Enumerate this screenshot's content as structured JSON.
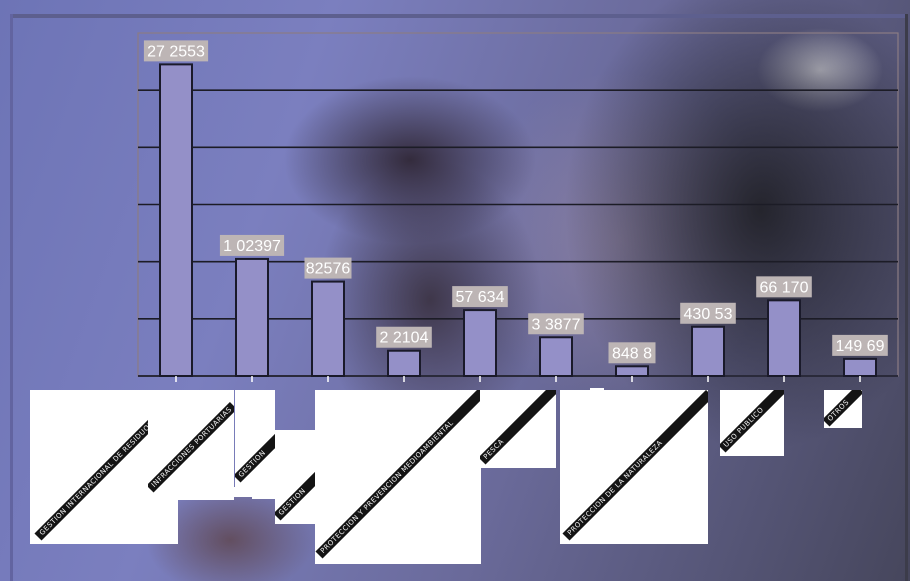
{
  "chart_data": {
    "type": "bar",
    "categories": [
      "GESTION INTERNACIONAL DE RESIDUOS",
      "INFRACCIONES PORTUARIAS",
      "GESTION",
      "GESTION",
      "PROTECCION Y PREVENCION MEDIOAMBIENTAL",
      "PESCA",
      "PROTECCION DE LA NATURALEZA",
      "",
      "USO PUBLICO",
      "OTROS"
    ],
    "values": [
      272553,
      102397,
      82576,
      22104,
      57634,
      33877,
      8488,
      43053,
      66170,
      14969
    ],
    "value_labels": [
      "27 2553",
      "1 02397",
      "82576",
      "2 2104",
      "57 634",
      "3 3877",
      "848 8",
      "430 53",
      "66 170",
      "149 69"
    ],
    "ylim": [
      0,
      300000
    ],
    "grid": true,
    "bar_color": "#9490c8",
    "bar_edge_color": "#1a1a2a",
    "label_bg_color": "#bdb5b5"
  }
}
